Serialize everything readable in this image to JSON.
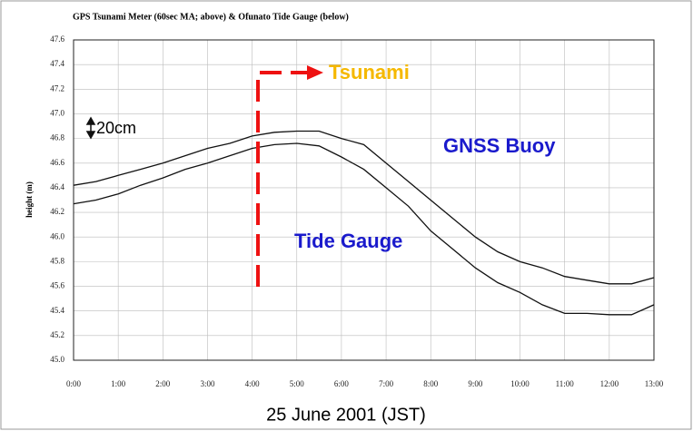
{
  "chart_data": {
    "type": "line",
    "title": "GPS Tsunami Meter (60sec MA; above) & Ofunato Tide Gauge (below)",
    "xlabel": "25 June 2001 (JST)",
    "ylabel": "height (m)",
    "annotations": [
      "Tsunami",
      "20cm",
      "GNSS Buoy",
      "Tide Gauge"
    ],
    "x": [
      0,
      0.5,
      1,
      1.5,
      2,
      2.5,
      3,
      3.5,
      4,
      4.5,
      5,
      5.5,
      6,
      6.5,
      7,
      7.5,
      8,
      8.5,
      9,
      9.5,
      10,
      10.5,
      11,
      11.5,
      12,
      12.5,
      13
    ],
    "series": [
      {
        "color": "#111111",
        "values": [
          46.42,
          46.45,
          46.5,
          46.55,
          46.6,
          46.66,
          46.72,
          46.76,
          46.82,
          46.85,
          46.86,
          46.86,
          46.8,
          46.75,
          46.6,
          46.45,
          46.3,
          46.15,
          46.0,
          45.88,
          45.8,
          45.75,
          45.68,
          45.65,
          45.62,
          45.62,
          45.67
        ]
      },
      {
        "color": "#111111",
        "values": [
          46.27,
          46.3,
          46.35,
          46.42,
          46.48,
          46.55,
          46.6,
          46.66,
          46.72,
          46.75,
          46.76,
          46.74,
          46.65,
          46.55,
          46.4,
          46.25,
          46.05,
          45.9,
          45.75,
          45.63,
          45.55,
          45.45,
          45.38,
          45.38,
          45.37,
          45.37,
          45.45
        ]
      }
    ],
    "xlim": [
      0,
      13
    ],
    "xticks": [
      {
        "value": 0,
        "label": "0:00"
      },
      {
        "value": 1,
        "label": "1:00"
      },
      {
        "value": 2,
        "label": "2:00"
      },
      {
        "value": 3,
        "label": "3:00"
      },
      {
        "value": 4,
        "label": "4:00"
      },
      {
        "value": 5,
        "label": "5:00"
      },
      {
        "value": 6,
        "label": "6:00"
      },
      {
        "value": 7,
        "label": "7:00"
      },
      {
        "value": 8,
        "label": "8:00"
      },
      {
        "value": 9,
        "label": "9:00"
      },
      {
        "value": 10,
        "label": "10:00"
      },
      {
        "value": 11,
        "label": "11:00"
      },
      {
        "value": 12,
        "label": "12:00"
      },
      {
        "value": 13,
        "label": "13:00"
      }
    ],
    "ylim": [
      45,
      47.6
    ],
    "yticks": [
      {
        "value": 45,
        "label": "45.0"
      },
      45.2,
      45.4,
      45.6,
      45.8,
      {
        "value": 46,
        "label": "46.0"
      },
      46.2,
      46.4,
      46.6,
      46.8,
      {
        "value": 47,
        "label": "47.0"
      },
      47.2,
      47.4,
      47.6
    ],
    "grid": true
  }
}
